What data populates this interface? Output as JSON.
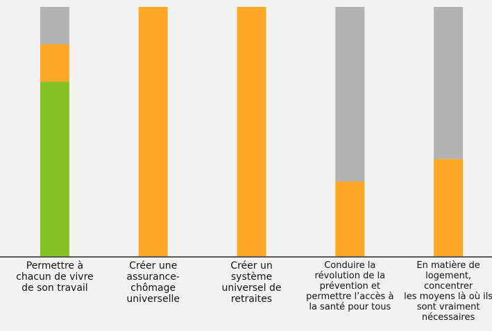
{
  "chart_data": {
    "type": "stacked_bar",
    "categories": [
      "Permettre à\nchacun de vivre\nde son travail",
      "Créer une\nassurance-\nchômage\nuniverselle",
      "Créer un\nsystème\nuniversel de\nretraites",
      "Conduire la\nrévolution de la\nprévention et\npermettre l’accès à\nla santé pour tous",
      "En matière de\nlogement, concentrer\nles moyens là où ils\nsont vraiment\nnécessaires"
    ],
    "series": [
      {
        "color": "#84c225",
        "values": [
          70,
          0,
          0,
          0,
          0
        ]
      },
      {
        "color": "#ffa726",
        "values": [
          15,
          100,
          100,
          30,
          39
        ]
      },
      {
        "color": "#b3b3b3",
        "values": [
          15,
          0,
          0,
          70,
          61
        ]
      }
    ],
    "ylim": [
      0,
      100
    ]
  }
}
